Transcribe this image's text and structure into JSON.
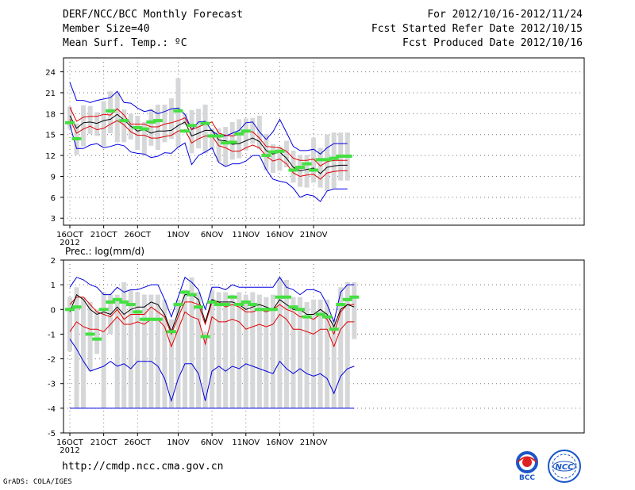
{
  "header": {
    "title": "DERF/NCC/BCC Monthly Forecast",
    "member": "Member Size=40",
    "variable": "Mean Surf. Temp.: ºC",
    "period": "For 2012/10/16-2012/11/24",
    "started": "Fcst Started Refer Date 2012/10/15",
    "produced": "Fcst Produced Date 2012/10/16"
  },
  "footer": {
    "url": "http://cmdp.ncc.cma.gov.cn",
    "credit": "GrADS: COLA/IGES",
    "logo1_text": "BCC",
    "logo2_text": "NCC"
  },
  "colors": {
    "box": "#d6d7d9",
    "obs": "#44e040",
    "mean": "#000000",
    "band": "#e00000",
    "env": "#0000e0",
    "grid": "#777777"
  },
  "chart_data": [
    {
      "type": "line",
      "title": "Mean Surf. Temp.: ºC",
      "ylim": [
        2,
        26
      ],
      "yticks": [
        3,
        6,
        9,
        12,
        15,
        18,
        21,
        24
      ],
      "xticks": [
        "16OCT",
        "21OCT",
        "26OCT",
        "1NOV",
        "6NOV",
        "11NOV",
        "16NOV",
        "21NOV"
      ],
      "xtick_index": [
        0,
        5,
        10,
        16,
        21,
        26,
        31,
        36
      ],
      "year_label": "2012",
      "n_days": 40,
      "series": [
        {
          "name": "max",
          "values": [
            22.5,
            19.9,
            19.9,
            19.6,
            19.9,
            20.1,
            20.3,
            21.2,
            19.6,
            19.5,
            18.8,
            18.3,
            18.5,
            18.0,
            18.3,
            18.7,
            18.8,
            17.9,
            15.7,
            16.8,
            16.9,
            15.5,
            14.9,
            14.8,
            15.2,
            15.6,
            16.7,
            16.8,
            15.4,
            14.3,
            15.4,
            17.2,
            15.3,
            13.3,
            12.7,
            12.7,
            12.9,
            12.2,
            13.1,
            13.7,
            13.7,
            13.7
          ]
        },
        {
          "name": "upper",
          "values": [
            18.9,
            16.9,
            17.5,
            17.6,
            17.6,
            17.9,
            17.8,
            18.7,
            17.8,
            16.5,
            16.5,
            16.5,
            16.1,
            16.1,
            16.5,
            16.7,
            17.0,
            17.4,
            15.7,
            16.1,
            16.5,
            16.8,
            15.2,
            14.9,
            14.8,
            15.0,
            15.4,
            15.4,
            14.5,
            13.3,
            13.2,
            13.1,
            12.6,
            11.6,
            11.3,
            11.3,
            11.5,
            10.5,
            11.1,
            11.3,
            11.3,
            11.3
          ]
        },
        {
          "name": "mean",
          "values": [
            17.7,
            15.9,
            16.7,
            16.8,
            16.6,
            17.0,
            17.2,
            17.9,
            17.1,
            16.2,
            15.5,
            15.7,
            15.2,
            15.5,
            15.5,
            15.6,
            16.3,
            16.8,
            14.8,
            15.2,
            15.6,
            15.6,
            14.2,
            14.1,
            13.6,
            13.7,
            14.1,
            14.5,
            14.0,
            12.7,
            12.2,
            12.5,
            11.6,
            10.3,
            9.8,
            10.0,
            10.2,
            9.4,
            10.3,
            10.5,
            10.6,
            10.6
          ]
        },
        {
          "name": "lower",
          "values": [
            17.2,
            15.2,
            15.8,
            16.2,
            15.7,
            15.9,
            16.5,
            17.0,
            16.4,
            15.4,
            14.9,
            14.9,
            14.5,
            14.5,
            14.7,
            14.9,
            15.5,
            15.7,
            13.8,
            14.4,
            14.8,
            14.8,
            13.4,
            13.1,
            12.6,
            12.6,
            13.1,
            13.5,
            13.1,
            11.9,
            11.2,
            11.5,
            10.8,
            9.5,
            9.0,
            9.2,
            9.3,
            8.6,
            9.5,
            9.7,
            9.8,
            9.8
          ]
        },
        {
          "name": "min",
          "values": [
            16.4,
            13.0,
            13.0,
            13.5,
            13.7,
            13.1,
            13.3,
            13.6,
            13.4,
            12.5,
            12.3,
            12.2,
            11.7,
            11.9,
            12.4,
            12.3,
            13.2,
            13.8,
            10.7,
            12.0,
            12.5,
            13.1,
            11.0,
            10.4,
            10.8,
            10.8,
            11.2,
            12.0,
            12.0,
            10.0,
            8.6,
            8.3,
            8.1,
            7.3,
            6.0,
            6.4,
            6.2,
            5.4,
            6.9,
            7.2,
            7.2,
            7.2
          ]
        },
        {
          "name": "box_top",
          "values": [
            19.0,
            16.6,
            19.2,
            19.1,
            18.2,
            19.8,
            21.2,
            20.9,
            18.6,
            18.0,
            17.7,
            16.8,
            18.7,
            19.3,
            19.3,
            20.2,
            23.1,
            17.9,
            18.5,
            18.7,
            19.3,
            15.9,
            15.9,
            16.1,
            16.8,
            17.2,
            17.3,
            17.4,
            17.7,
            15.1,
            13.6,
            13.3,
            14.1,
            12.7,
            12.1,
            12.1,
            14.5,
            13.1,
            15.0,
            15.3,
            15.3,
            15.3
          ]
        },
        {
          "name": "box_bottom",
          "values": [
            15.8,
            12.1,
            13.3,
            15.1,
            14.8,
            13.3,
            15.2,
            13.9,
            13.9,
            14.3,
            12.8,
            12.0,
            13.4,
            12.8,
            13.9,
            14.4,
            13.1,
            16.4,
            12.3,
            13.0,
            12.3,
            12.8,
            11.1,
            10.4,
            11.4,
            11.6,
            12.7,
            13.7,
            12.9,
            9.9,
            9.5,
            9.8,
            10.3,
            8.1,
            7.5,
            7.4,
            8.1,
            7.4,
            6.9,
            7.3,
            8.4,
            8.4
          ]
        },
        {
          "name": "observed",
          "values": [
            16.7,
            14.4,
            null,
            null,
            null,
            null,
            18.4,
            null,
            17.0,
            null,
            16.0,
            15.8,
            16.8,
            17.0,
            null,
            null,
            18.4,
            15.5,
            16.3,
            null,
            16.6,
            14.8,
            14.8,
            13.8,
            13.9,
            15.1,
            15.5,
            null,
            null,
            12.0,
            12.5,
            12.6,
            null,
            9.9,
            10.3,
            10.8,
            9.9,
            11.4,
            11.4,
            11.6,
            11.9,
            11.9
          ]
        }
      ]
    },
    {
      "type": "line",
      "title": "Prec.: log(mm/d)",
      "ylim": [
        -5,
        2
      ],
      "yticks": [
        -5,
        -4,
        -3,
        -2,
        -1,
        0,
        1,
        2
      ],
      "xticks": [
        "16OCT",
        "21OCT",
        "26OCT",
        "1NOV",
        "6NOV",
        "11NOV",
        "16NOV",
        "21NOV"
      ],
      "xtick_index": [
        0,
        5,
        10,
        16,
        21,
        26,
        31,
        36
      ],
      "year_label": "2012",
      "n_days": 40,
      "series": [
        {
          "name": "max",
          "values": [
            0.9,
            1.3,
            1.2,
            1.0,
            0.9,
            0.6,
            0.6,
            0.9,
            0.7,
            0.8,
            0.8,
            0.9,
            1.0,
            1.0,
            0.4,
            -0.3,
            0.5,
            1.3,
            1.1,
            0.8,
            0.0,
            0.9,
            0.9,
            0.8,
            1.0,
            0.9,
            0.9,
            0.9,
            0.9,
            0.9,
            0.9,
            1.3,
            0.9,
            0.8,
            0.6,
            0.8,
            0.8,
            0.7,
            0.2,
            -0.5,
            0.7,
            1.0,
            1.0
          ]
        },
        {
          "name": "upper",
          "values": [
            0.2,
            0.5,
            0.5,
            0.2,
            -0.1,
            -0.2,
            -0.3,
            0.0,
            -0.4,
            -0.2,
            -0.2,
            -0.2,
            0.1,
            -0.1,
            -0.3,
            -1.0,
            -0.3,
            0.3,
            0.3,
            0.2,
            -0.6,
            0.3,
            0.3,
            0.1,
            0.2,
            0.1,
            -0.1,
            -0.1,
            0.0,
            -0.1,
            0.0,
            0.2,
            0.0,
            -0.1,
            -0.3,
            -0.3,
            -0.4,
            -0.2,
            -0.4,
            -1.0,
            -0.1,
            0.2,
            0.2
          ]
        },
        {
          "name": "mean",
          "values": [
            -0.1,
            0.6,
            0.4,
            0.0,
            -0.2,
            -0.1,
            -0.2,
            0.1,
            -0.2,
            0.0,
            0.1,
            0.1,
            0.3,
            0.2,
            -0.2,
            -0.9,
            -0.1,
            0.6,
            0.6,
            0.4,
            -0.5,
            0.4,
            0.3,
            0.3,
            0.3,
            0.2,
            0.0,
            0.1,
            0.2,
            0.1,
            0.0,
            0.4,
            0.2,
            0.0,
            0.0,
            -0.2,
            -0.2,
            0.0,
            -0.2,
            -0.7,
            0.0,
            0.2,
            0.1
          ]
        },
        {
          "name": "lower",
          "values": [
            -0.9,
            -0.5,
            -0.7,
            -0.8,
            -0.8,
            -0.9,
            -0.6,
            -0.3,
            -0.6,
            -0.6,
            -0.5,
            -0.6,
            -0.4,
            -0.4,
            -0.7,
            -1.5,
            -0.8,
            -0.1,
            -0.3,
            -0.4,
            -1.4,
            -0.3,
            -0.5,
            -0.5,
            -0.4,
            -0.5,
            -0.8,
            -0.7,
            -0.6,
            -0.7,
            -0.6,
            -0.2,
            -0.4,
            -0.8,
            -0.8,
            -0.9,
            -1.0,
            -0.8,
            -0.8,
            -1.5,
            -0.8,
            -0.5,
            -0.5
          ]
        },
        {
          "name": "min",
          "values": [
            -1.2,
            -1.6,
            -2.1,
            -2.5,
            -2.4,
            -2.3,
            -2.1,
            -2.3,
            -2.2,
            -2.4,
            -2.1,
            -2.1,
            -2.1,
            -2.3,
            -2.8,
            -3.7,
            -2.8,
            -2.2,
            -2.2,
            -2.6,
            -3.7,
            -2.5,
            -2.3,
            -2.5,
            -2.3,
            -2.4,
            -2.2,
            -2.3,
            -2.4,
            -2.5,
            -2.6,
            -2.1,
            -2.4,
            -2.6,
            -2.4,
            -2.6,
            -2.7,
            -2.6,
            -2.8,
            -3.4,
            -2.7,
            -2.4,
            -2.3
          ]
        },
        {
          "name": "floor",
          "values": [
            -4,
            -4,
            -4,
            -4,
            -4,
            -4,
            -4,
            -4,
            -4,
            -4,
            -4,
            -4,
            -4,
            -4,
            -4,
            -4,
            -4,
            -4,
            -4,
            -4,
            -4,
            -4,
            -4,
            -4,
            -4,
            -4,
            -4,
            -4,
            -4,
            -4,
            -4,
            -4,
            -4,
            -4,
            -4,
            -4,
            -4,
            -4,
            -4,
            -4,
            -4,
            -4,
            -4
          ]
        },
        {
          "name": "box_top",
          "values": [
            0.5,
            0.9,
            0.5,
            0.3,
            0.0,
            0.7,
            0.6,
            0.6,
            1.1,
            0.8,
            0.7,
            0.6,
            0.6,
            0.6,
            0.4,
            -0.4,
            0.4,
            0.8,
            1.3,
            0.7,
            -0.9,
            0.8,
            0.7,
            0.7,
            0.6,
            0.7,
            0.6,
            0.7,
            0.6,
            0.5,
            0.6,
            1.3,
            1.2,
            0.5,
            0.5,
            0.3,
            0.4,
            0.4,
            0.4,
            -0.4,
            0.9,
            1.1,
            1.1
          ]
        },
        {
          "name": "box_bottom",
          "values": [
            -1.7,
            -4.0,
            -4.0,
            -2.5,
            -1.8,
            -4.0,
            -1.0,
            -4.0,
            -4.0,
            -4.0,
            -4.0,
            -4.0,
            -4.0,
            -4.0,
            -4.0,
            -4.0,
            -4.0,
            -4.0,
            -4.0,
            -4.0,
            -4.0,
            -4.0,
            -4.0,
            -4.0,
            -4.0,
            -4.0,
            -4.0,
            -4.0,
            -4.0,
            -4.0,
            -4.0,
            -4.0,
            -4.0,
            -4.0,
            -4.0,
            -4.0,
            -4.0,
            -4.0,
            -4.0,
            -4.0,
            -4.0,
            -4.0,
            -1.2
          ]
        },
        {
          "name": "observed",
          "values": [
            0.0,
            0.1,
            null,
            -1.0,
            -1.2,
            0.0,
            0.3,
            0.4,
            0.3,
            0.2,
            -0.1,
            -0.4,
            -0.4,
            -0.4,
            null,
            -0.9,
            0.2,
            0.7,
            0.6,
            0.1,
            -1.1,
            0.3,
            0.2,
            0.2,
            0.5,
            0.2,
            0.3,
            0.2,
            0.0,
            0.0,
            0.0,
            0.5,
            0.5,
            0.1,
            0.0,
            -0.3,
            null,
            -0.2,
            -0.3,
            -0.8,
            0.2,
            0.4,
            0.5
          ]
        }
      ]
    }
  ]
}
